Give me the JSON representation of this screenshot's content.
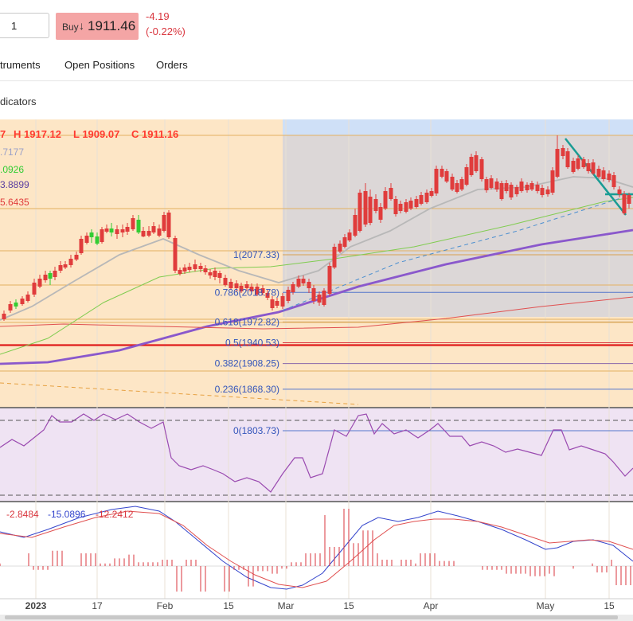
{
  "order": {
    "quantity": "1",
    "buy_label": "Buy",
    "buy_arrow": "↓",
    "buy_price": "1911.46",
    "change": "-4.19",
    "change_pct": "(-0.22%)"
  },
  "tabs": [
    {
      "label": "truments"
    },
    {
      "label": "Open Positions"
    },
    {
      "label": "Orders"
    }
  ],
  "indicators_label": "dicators",
  "ohlc": {
    "open": "7",
    "high": "H 1917.12",
    "low": "L 1909.07",
    "close": "C 1911.16"
  },
  "ma_values": [
    {
      "text": ".7177",
      "color": "#9aa0c8"
    },
    {
      "text": ".0926",
      "color": "#33cc33"
    },
    {
      "text": "3.8899",
      "color": "#5b3fa0"
    },
    {
      "text": "5.6435",
      "color": "#e03c3c"
    }
  ],
  "fib_levels": [
    {
      "label": "1(2077.33)",
      "value": 2077.33
    },
    {
      "label": "0.786(2018.78)",
      "value": 2018.78
    },
    {
      "label": "0.618(1972.82)",
      "value": 1972.82
    },
    {
      "label": "0.5(1940.53)",
      "value": 1940.53
    },
    {
      "label": "0.382(1908.25)",
      "value": 1908.25
    },
    {
      "label": "0.236(1868.30)",
      "value": 1868.3
    },
    {
      "label": "0(1803.73)",
      "value": 1803.73
    }
  ],
  "macd_values": [
    {
      "text": "-2.8484",
      "color": "#d9363e"
    },
    {
      "text": "-15.0896",
      "color": "#3344cc"
    },
    {
      "text": "-12.2412",
      "color": "#d9363e"
    }
  ],
  "x_axis_labels": [
    "2023",
    "17",
    "Feb",
    "15",
    "Mar",
    "15",
    "Apr",
    "May",
    "15"
  ],
  "colors": {
    "price_area_left": "#fde6c6",
    "fib_box": "#dcd7d7",
    "rsi_bg": "#efe3f3",
    "bull": "#33cc33",
    "bear": "#e03c3c",
    "accent_red": "#d9363e",
    "trend_teal": "#1a9c94"
  },
  "chart_data": {
    "type": "candlestick",
    "price_levels": [
      2077.33,
      2018.78,
      1972.82,
      1940.53,
      1908.25,
      1868.3,
      1803.73
    ],
    "last_ohlc": {
      "high": 1917.12,
      "low": 1909.07,
      "close": 1911.16
    },
    "x_ticks": [
      "2023",
      "17",
      "Feb",
      "15",
      "Mar",
      "15",
      "Apr",
      "May",
      "15"
    ],
    "subpanels": [
      "RSI",
      "MACD"
    ]
  }
}
